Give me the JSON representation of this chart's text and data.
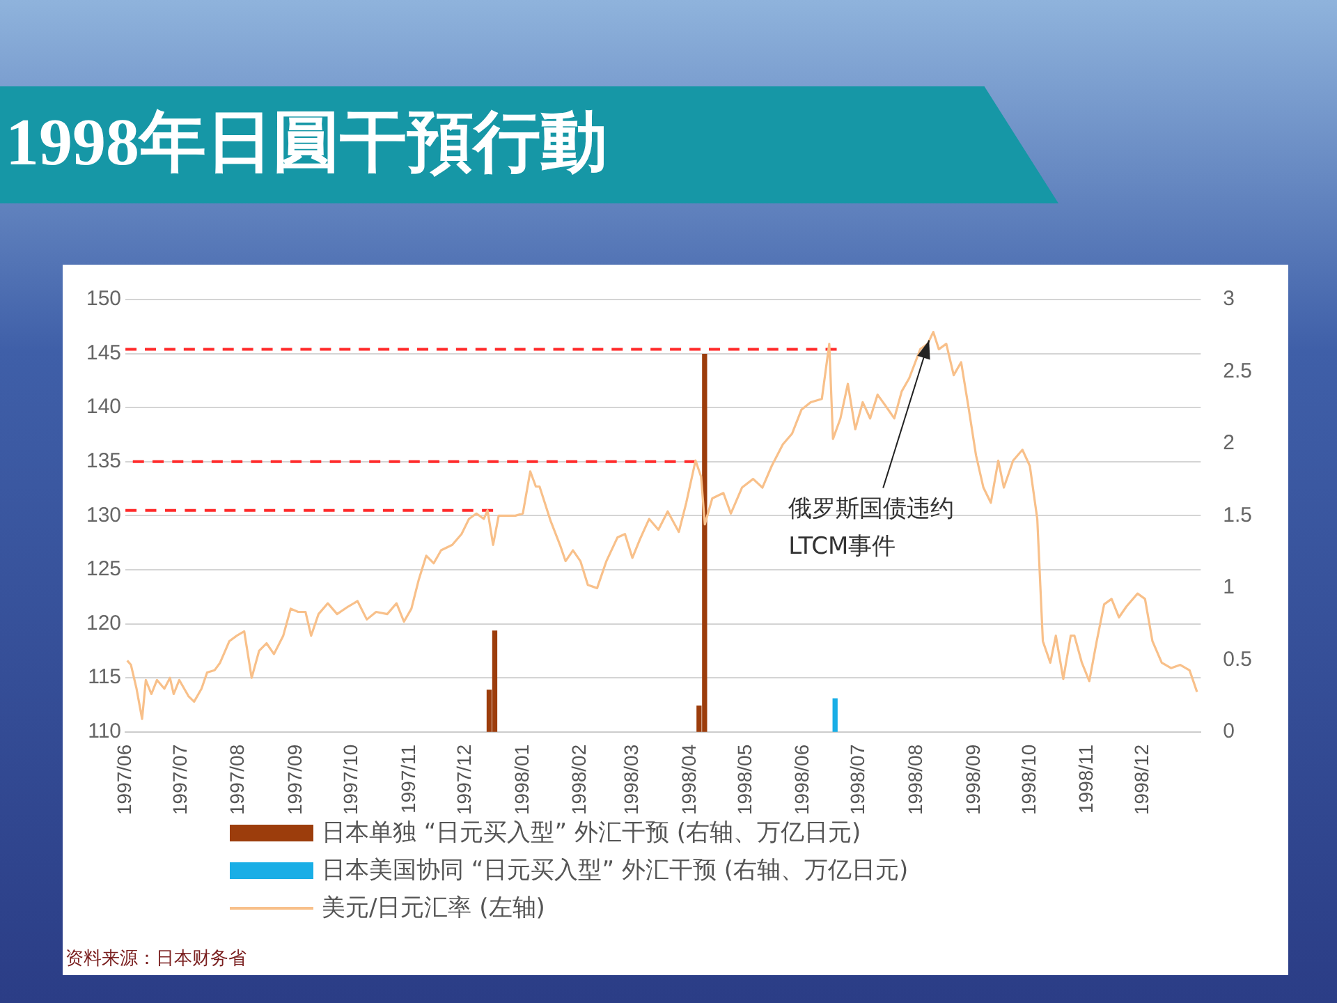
{
  "chart_data": {
    "type": "line",
    "title": "1998年日圓干預行動",
    "xlim": [
      "1997-06-01",
      "1999-01-01"
    ],
    "xticks": [
      {
        "value": "1997-06-01",
        "label": "1997/06"
      },
      {
        "value": "1997-07-01",
        "label": "1997/07"
      },
      {
        "value": "1997-08-01",
        "label": "1997/08"
      },
      {
        "value": "1997-09-01",
        "label": "1997/09"
      },
      {
        "value": "1997-10-01",
        "label": "1997/10"
      },
      {
        "value": "1997-11-01",
        "label": "1997/11"
      },
      {
        "value": "1997-12-01",
        "label": "1997/12"
      },
      {
        "value": "1998-01-01",
        "label": "1998/01"
      },
      {
        "value": "1998-02-01",
        "label": "1998/02"
      },
      {
        "value": "1998-03-01",
        "label": "1998/03"
      },
      {
        "value": "1998-04-01",
        "label": "1998/04"
      },
      {
        "value": "1998-05-01",
        "label": "1998/05"
      },
      {
        "value": "1998-06-01",
        "label": "1998/06"
      },
      {
        "value": "1998-07-01",
        "label": "1998/07"
      },
      {
        "value": "1998-08-01",
        "label": "1998/08"
      },
      {
        "value": "1998-09-01",
        "label": "1998/09"
      },
      {
        "value": "1998-10-01",
        "label": "1998/10"
      },
      {
        "value": "1998-11-01",
        "label": "1998/11"
      },
      {
        "value": "1998-12-01",
        "label": "1998/12"
      }
    ],
    "ylim": [
      110,
      150
    ],
    "yticks": [
      110,
      115,
      120,
      125,
      130,
      135,
      140,
      145,
      150
    ],
    "y2lim": [
      0,
      3
    ],
    "y2ticks": [
      0,
      0.5,
      1,
      1.5,
      2,
      2.5,
      3
    ],
    "grid": "y",
    "legend": "bottom",
    "series": [
      {
        "name": "日本单独 “日元买入型” 外汇干预 (右轴、万亿日元)",
        "type": "bar",
        "axis": "y2",
        "color": "#9c3d0c",
        "x": [
          "1997-12-15",
          "1997-12-18",
          "1998-04-07",
          "1998-04-10"
        ],
        "values": [
          0.29,
          0.7,
          0.18,
          2.62
        ]
      },
      {
        "name": "日本美国协同 “日元买入型” 外汇干预 (右轴、万亿日元)",
        "type": "bar",
        "axis": "y2",
        "color": "#19aee6",
        "x": [
          "1998-06-17"
        ],
        "values": [
          0.23
        ]
      },
      {
        "name": "美元/日元汇率 (左轴)",
        "color": "#f8c08a",
        "x": [
          "1997-06-02",
          "1997-06-04",
          "1997-06-07",
          "1997-06-10",
          "1997-06-12",
          "1997-06-15",
          "1997-06-18",
          "1997-06-22",
          "1997-06-25",
          "1997-06-27",
          "1997-06-30",
          "1997-07-05",
          "1997-07-08",
          "1997-07-12",
          "1997-07-15",
          "1997-07-19",
          "1997-07-22",
          "1997-07-27",
          "1997-07-31",
          "1997-08-04",
          "1997-08-08",
          "1997-08-12",
          "1997-08-16",
          "1997-08-20",
          "1997-08-25",
          "1997-08-29",
          "1997-09-02",
          "1997-09-06",
          "1997-09-09",
          "1997-09-13",
          "1997-09-18",
          "1997-09-23",
          "1997-09-29",
          "1997-10-04",
          "1997-10-09",
          "1997-10-14",
          "1997-10-20",
          "1997-10-25",
          "1997-10-29",
          "1997-11-02",
          "1997-11-06",
          "1997-11-10",
          "1997-11-14",
          "1997-11-18",
          "1997-11-24",
          "1997-11-29",
          "1997-12-03",
          "1997-12-07",
          "1997-12-11",
          "1997-12-13",
          "1997-12-16",
          "1997-12-19",
          "1997-12-23",
          "1997-12-28",
          "1998-01-01",
          "1998-01-05",
          "1998-01-08",
          "1998-01-10",
          "1998-01-16",
          "1998-01-21",
          "1998-01-24",
          "1998-01-28",
          "1998-02-01",
          "1998-02-05",
          "1998-02-10",
          "1998-02-15",
          "1998-02-21",
          "1998-02-25",
          "1998-03-01",
          "1998-03-05",
          "1998-03-10",
          "1998-03-15",
          "1998-03-20",
          "1998-03-26",
          "1998-03-30",
          "1998-04-04",
          "1998-04-07",
          "1998-04-09",
          "1998-04-13",
          "1998-04-19",
          "1998-04-23",
          "1998-04-29",
          "1998-05-05",
          "1998-05-10",
          "1998-05-15",
          "1998-05-21",
          "1998-05-26",
          "1998-05-31",
          "1998-06-05",
          "1998-06-11",
          "1998-06-15",
          "1998-06-17",
          "1998-06-21",
          "1998-06-25",
          "1998-06-29",
          "1998-07-03",
          "1998-07-07",
          "1998-07-11",
          "1998-07-16",
          "1998-07-20",
          "1998-07-24",
          "1998-07-28",
          "1998-08-03",
          "1998-08-07",
          "1998-08-10",
          "1998-08-13",
          "1998-08-17",
          "1998-08-21",
          "1998-08-25",
          "1998-08-29",
          "1998-09-02",
          "1998-09-06",
          "1998-09-10",
          "1998-09-14",
          "1998-09-17",
          "1998-09-22",
          "1998-09-27",
          "1998-10-01",
          "1998-10-05",
          "1998-10-08",
          "1998-10-12",
          "1998-10-15",
          "1998-10-19",
          "1998-10-23",
          "1998-10-25",
          "1998-10-29",
          "1998-11-02",
          "1998-11-06",
          "1998-11-10",
          "1998-11-14",
          "1998-11-18",
          "1998-11-22",
          "1998-11-28",
          "1998-12-02",
          "1998-12-06",
          "1998-12-11",
          "1998-12-16",
          "1998-12-21",
          "1998-12-26",
          "1998-12-30"
        ],
        "values": [
          116.6,
          116.2,
          114,
          111.2,
          114.8,
          113.5,
          114.8,
          114,
          115,
          113.5,
          114.8,
          113.3,
          112.8,
          114,
          115.5,
          115.7,
          116.4,
          118.4,
          118.9,
          119.3,
          115,
          117.5,
          118.2,
          117.2,
          118.9,
          121.4,
          121.1,
          121.1,
          118.9,
          120.9,
          121.9,
          120.9,
          121.6,
          122.1,
          120.4,
          121.1,
          120.9,
          121.9,
          120.2,
          121.4,
          124.1,
          126.3,
          125.6,
          126.8,
          127.3,
          128.3,
          129.7,
          130.2,
          129.7,
          130.5,
          127.3,
          130,
          130,
          130,
          130.2,
          134.1,
          132.7,
          132.7,
          129.5,
          127.3,
          125.8,
          126.8,
          125.8,
          123.6,
          123.3,
          125.8,
          128,
          128.3,
          126.1,
          127.8,
          129.7,
          128.7,
          130.4,
          128.5,
          131.2,
          135.1,
          133.6,
          129.2,
          131.6,
          132.1,
          130.2,
          132.6,
          133.4,
          132.6,
          134.6,
          136.6,
          137.6,
          139.8,
          140.5,
          140.8,
          145.9,
          137.1,
          139,
          142.2,
          138,
          140.5,
          139,
          141.2,
          140,
          139,
          141.5,
          142.7,
          145.4,
          145.9,
          147,
          145.4,
          145.9,
          143,
          144.2,
          140,
          135.6,
          132.6,
          131.2,
          135.1,
          132.6,
          135.1,
          136.1,
          134.6,
          129.7,
          118.4,
          116.4,
          118.9,
          114.9,
          118.9,
          118.9,
          116.4,
          114.7,
          118.4,
          121.8,
          122.3,
          120.6,
          121.6,
          122.8,
          122.3,
          118.4,
          116.4,
          115.9,
          116.2,
          115.7,
          113.7
        ]
      },
      {
        "color": "#ff2a2a",
        "line_style": "dashed",
        "x": [
          "1997-06-01",
          "1998-06-19"
        ],
        "values": [
          145.4,
          145.4
        ]
      },
      {
        "color": "#ff2a2a",
        "line_style": "dashed",
        "x": [
          "1997-06-05",
          "1998-04-04"
        ],
        "values": [
          135,
          135
        ]
      },
      {
        "color": "#ff2a2a",
        "line_style": "dashed",
        "x": [
          "1997-06-01",
          "1997-12-16"
        ],
        "values": [
          130.5,
          130.5
        ]
      }
    ],
    "annotations": [
      {
        "text": "俄罗斯国债违约\nLTCM事件",
        "x": "1998-08-10",
        "y": 147
      },
      "资料来源：日本财务省"
    ]
  }
}
